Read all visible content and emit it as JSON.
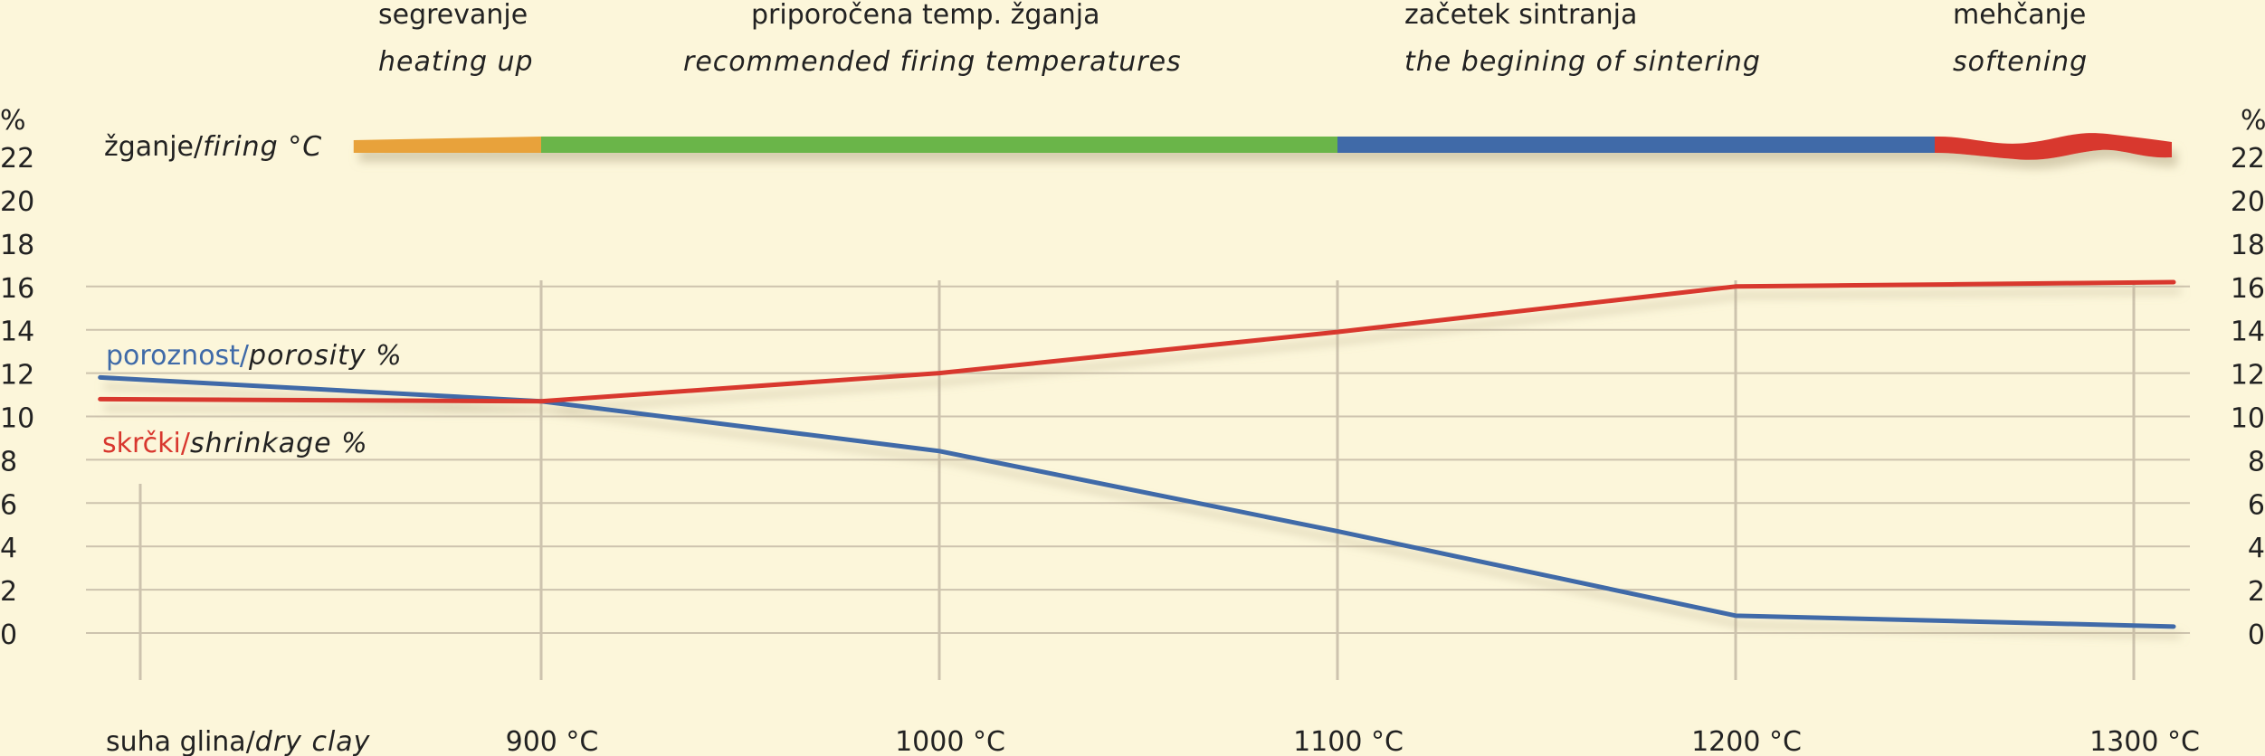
{
  "stages": [
    {
      "title": "segrevanje",
      "subtitle": "heating up"
    },
    {
      "title": "priporočena temp. žganja",
      "subtitle": "recommended firing temperatures"
    },
    {
      "title": "začetek sintranja",
      "subtitle": "the begining of sintering"
    },
    {
      "title": "mehčanje",
      "subtitle": "softening"
    }
  ],
  "firing_label": {
    "main": "žganje/",
    "italic": "firing °C"
  },
  "porosity_label": {
    "main": "poroznost/",
    "italic": "porosity %"
  },
  "shrinkage_label": {
    "main": "skrčki/",
    "italic": "shrinkage %"
  },
  "y_unit": "%",
  "colors": {
    "background": "#fcf6da",
    "grid": "#cdc3ae",
    "porosity": "#3f6aa8",
    "shrinkage": "#d8372e",
    "band_heating": "#e8a23b",
    "band_recommended": "#6bb548",
    "band_sintering": "#3f6aa8",
    "band_softening": "#d8372e"
  },
  "chart_data": {
    "type": "line",
    "categories": [
      "suha glina/dry clay",
      "900 °C",
      "1000 °C",
      "1100 °C",
      "1200 °C",
      "1300 °C"
    ],
    "category_parts": [
      {
        "main": "suha glina/",
        "italic": "dry clay"
      },
      {
        "main": "900 °C",
        "italic": ""
      },
      {
        "main": "1000 °C",
        "italic": ""
      },
      {
        "main": "1100 °C",
        "italic": ""
      },
      {
        "main": "1200 °C",
        "italic": ""
      },
      {
        "main": "1300 °C",
        "italic": ""
      }
    ],
    "x_values": [
      800,
      900,
      1000,
      1100,
      1200,
      1300
    ],
    "series": [
      {
        "name": "poroznost/porosity %",
        "x": [
          790,
          900,
          1000,
          1100,
          1200,
          1310
        ],
        "values": [
          11.8,
          10.7,
          8.4,
          4.7,
          0.8,
          0.3
        ]
      },
      {
        "name": "skrčki/shrinkage %",
        "x": [
          790,
          900,
          1000,
          1100,
          1200,
          1310
        ],
        "values": [
          10.8,
          10.7,
          12.0,
          13.9,
          16.0,
          16.2
        ]
      }
    ],
    "firing_stages": [
      {
        "name": "heating up",
        "from": 860,
        "to": 900
      },
      {
        "name": "recommended firing temperatures",
        "from": 900,
        "to": 1100
      },
      {
        "name": "the begining of sintering",
        "from": 1100,
        "to": 1250
      },
      {
        "name": "softening",
        "from": 1250,
        "to": 1310
      }
    ],
    "y_ticks": [
      0,
      2,
      4,
      6,
      8,
      10,
      12,
      14,
      16,
      18,
      20,
      22
    ],
    "ylim": [
      0,
      22
    ],
    "grid": true
  }
}
